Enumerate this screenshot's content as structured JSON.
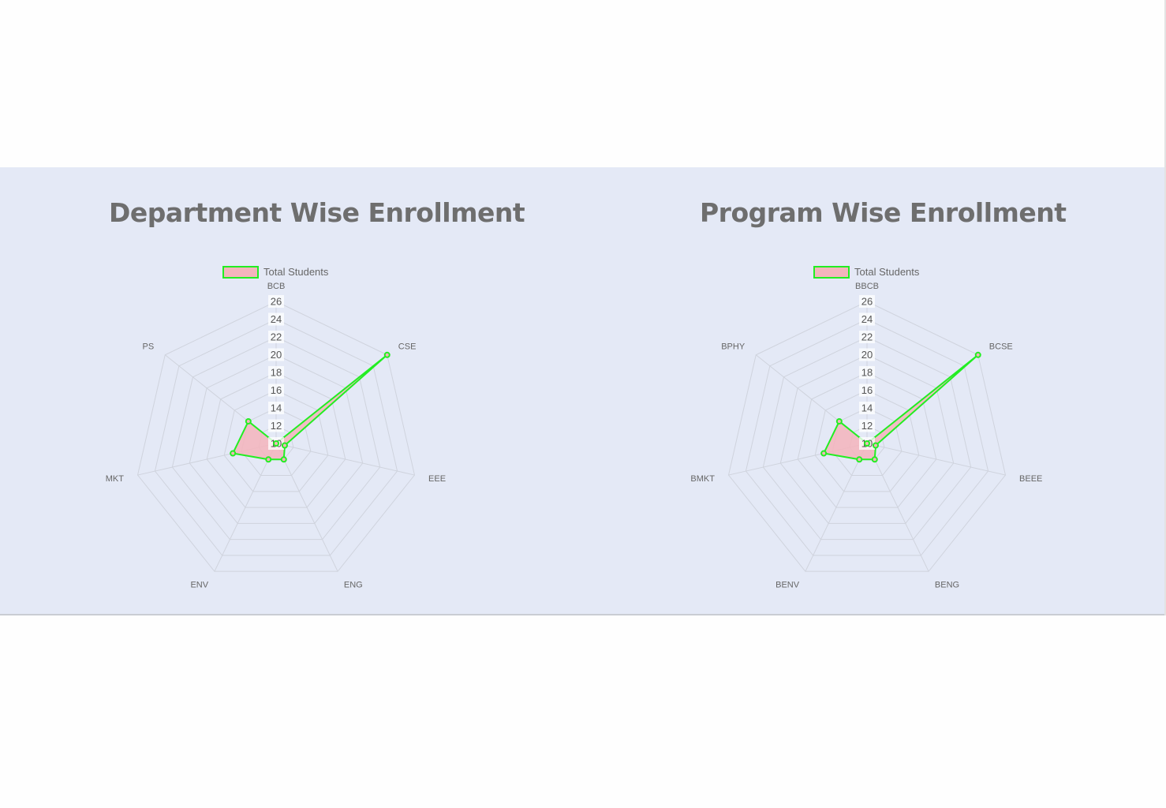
{
  "chart_data": [
    {
      "type": "radar",
      "title": "Department Wise Enrollment",
      "legend": "top",
      "categories": [
        "BCB",
        "CSE",
        "EEE",
        "ENG",
        "ENV",
        "MKT",
        "PS"
      ],
      "series": [
        {
          "name": "Total Students",
          "values": [
            10,
            26,
            11,
            12,
            12,
            15,
            14
          ]
        }
      ],
      "rlim": [
        10,
        26
      ],
      "ticks": [
        "10",
        "12",
        "14",
        "16",
        "18",
        "20",
        "22",
        "24",
        "26"
      ],
      "colors": {
        "line": "#22ee22",
        "fill": "#f4b4bc",
        "grid": "#cfd3dd"
      }
    },
    {
      "type": "radar",
      "title": "Program Wise Enrollment",
      "legend": "top",
      "categories": [
        "BBCB",
        "BCSE",
        "BEEE",
        "BENG",
        "BENV",
        "BMKT",
        "BPHY"
      ],
      "series": [
        {
          "name": "Total Students",
          "values": [
            10,
            26,
            11,
            12,
            12,
            15,
            14
          ]
        }
      ],
      "rlim": [
        10,
        26
      ],
      "ticks": [
        "10",
        "12",
        "14",
        "16",
        "18",
        "20",
        "22",
        "24",
        "26"
      ],
      "colors": {
        "line": "#22ee22",
        "fill": "#f4b4bc",
        "grid": "#cfd3dd"
      }
    }
  ]
}
